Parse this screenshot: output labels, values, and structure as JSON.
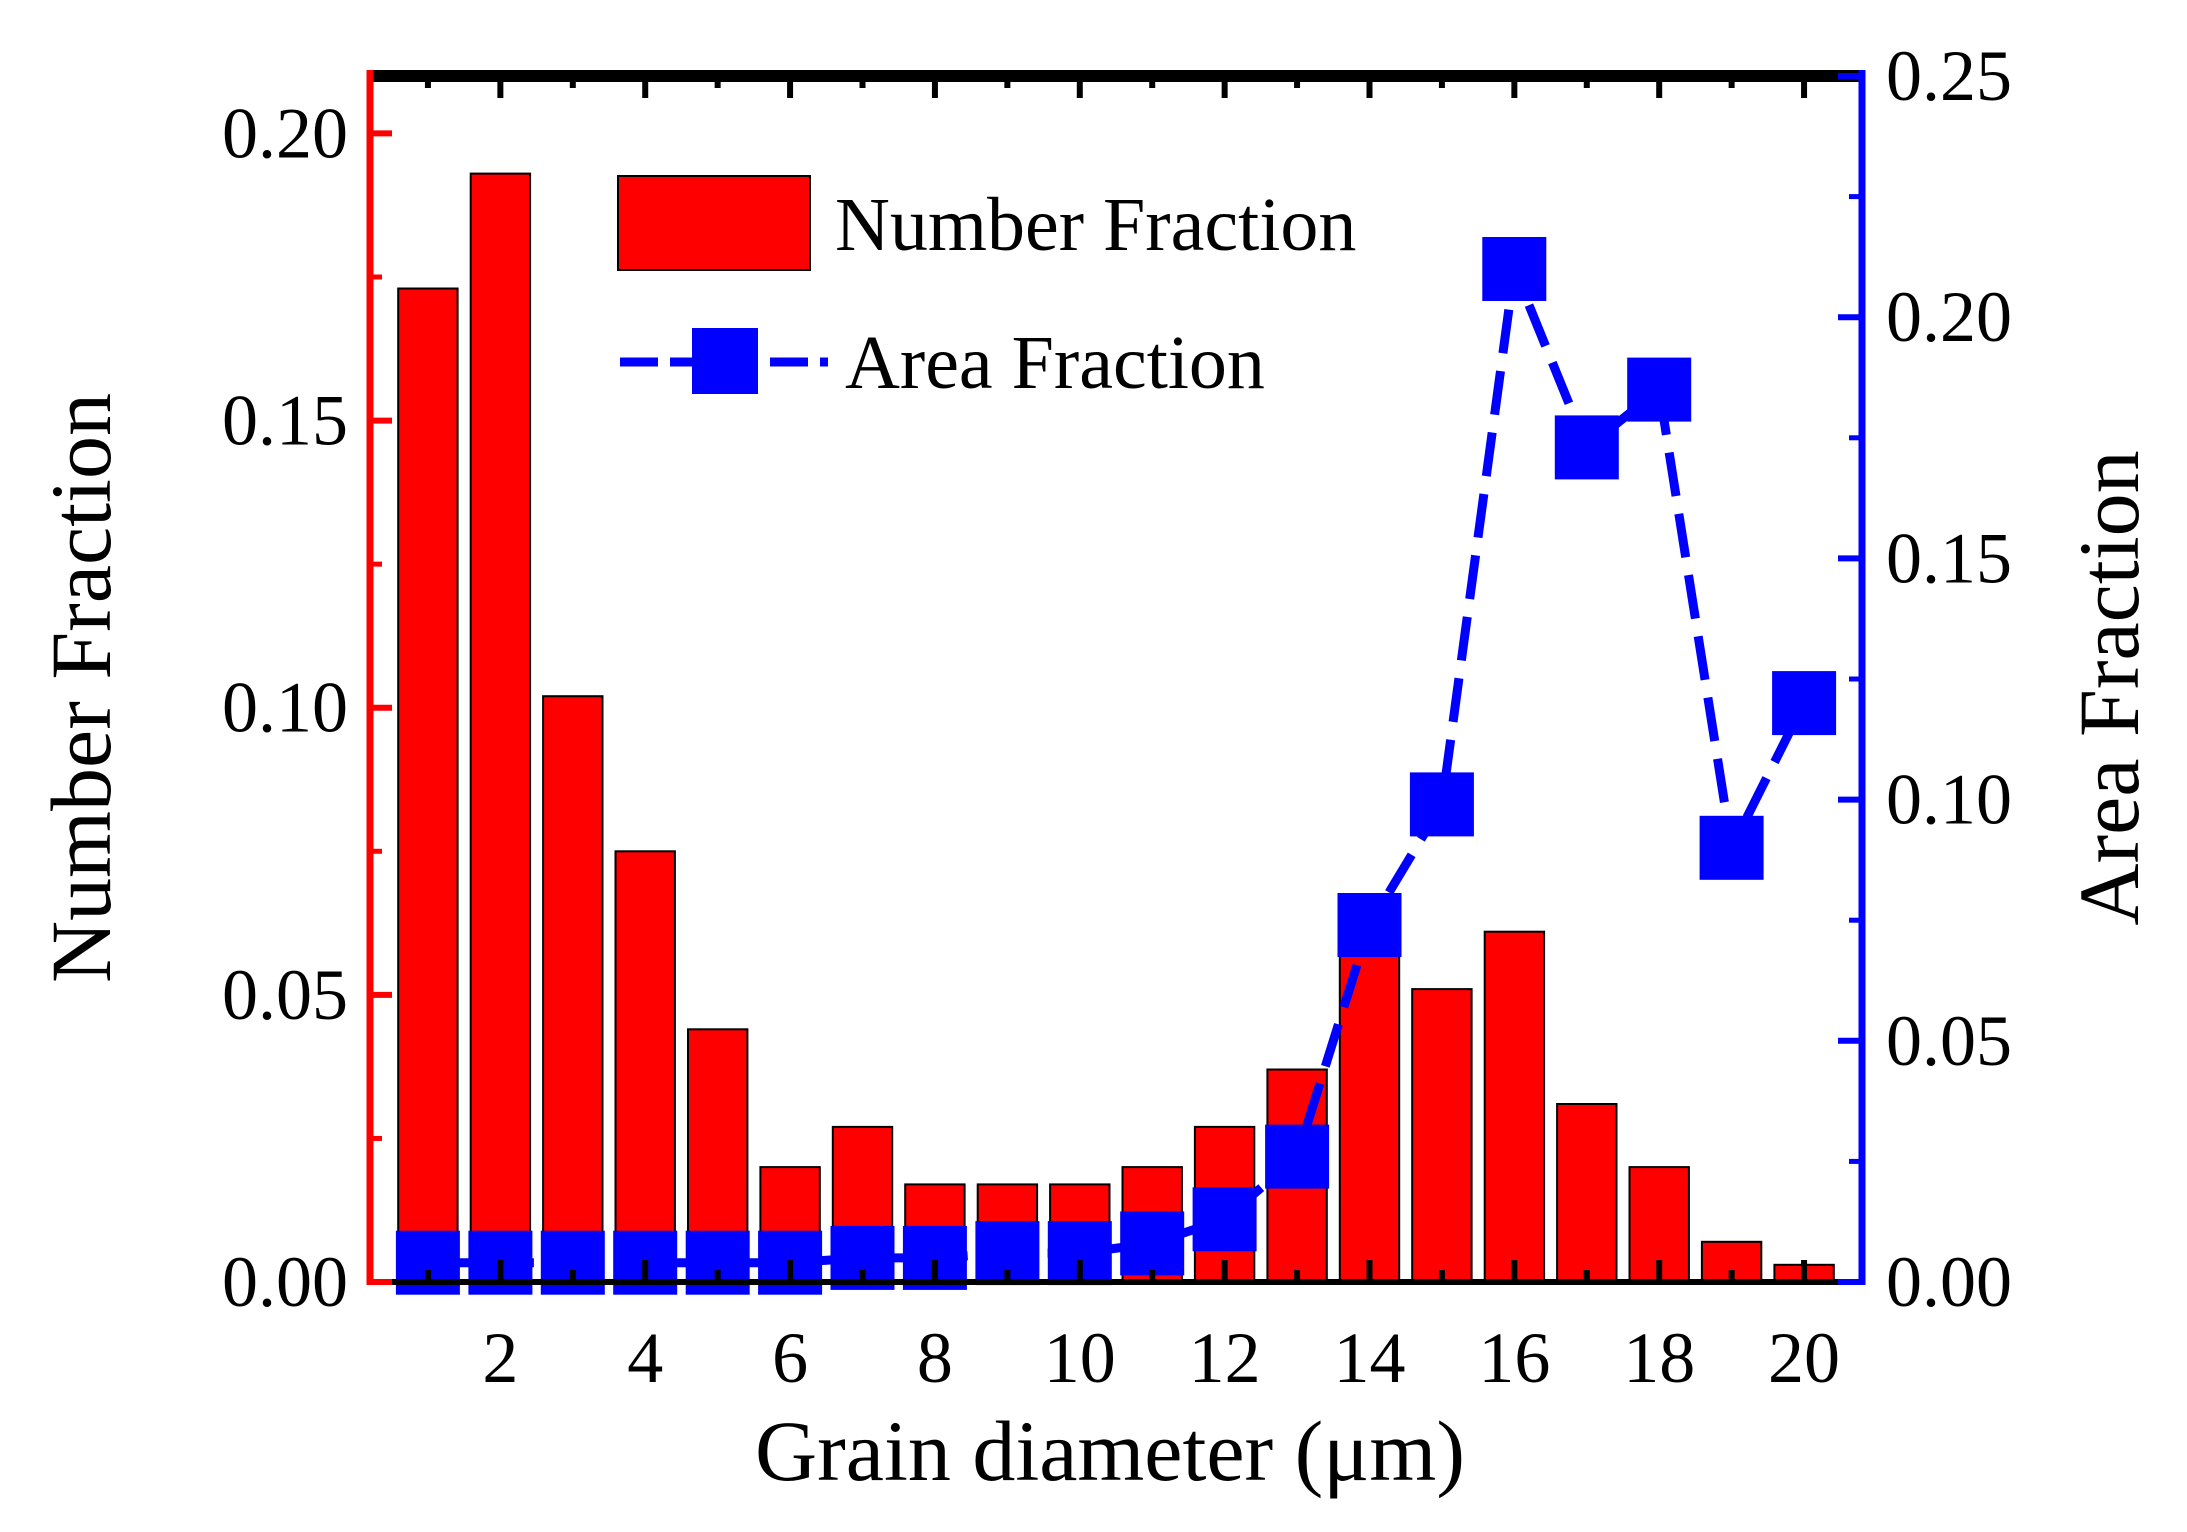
{
  "chart_data": {
    "type": "bar",
    "xlabel": "Grain diameter (μm)",
    "ylabel_left": "Number Fraction",
    "ylabel_right": "Area Fraction",
    "x": [
      1,
      2,
      3,
      4,
      5,
      6,
      7,
      8,
      9,
      10,
      11,
      12,
      13,
      14,
      15,
      16,
      17,
      18,
      19,
      20
    ],
    "xlim": [
      0.2,
      20.8
    ],
    "x_ticks": [
      2,
      4,
      6,
      8,
      10,
      12,
      14,
      16,
      18,
      20
    ],
    "x_tick_labels": [
      "2",
      "4",
      "6",
      "8",
      "10",
      "12",
      "14",
      "16",
      "18",
      "20"
    ],
    "ylim_left": [
      0,
      0.21
    ],
    "y_left_ticks": [
      0,
      0.05,
      0.1,
      0.15,
      0.2
    ],
    "y_left_tick_labels": [
      "0.00",
      "0.05",
      "0.10",
      "0.15",
      "0.20"
    ],
    "ylim_right": [
      0,
      0.25
    ],
    "y_right_ticks": [
      0,
      0.05,
      0.1,
      0.15,
      0.2,
      0.25
    ],
    "y_right_tick_labels": [
      "0.00",
      "0.05",
      "0.10",
      "0.15",
      "0.20",
      "0.25"
    ],
    "series": [
      {
        "name": "Number Fraction",
        "type": "bar",
        "axis": "left",
        "color": "#ff0000",
        "values": [
          0.173,
          0.193,
          0.102,
          0.075,
          0.044,
          0.02,
          0.027,
          0.017,
          0.017,
          0.017,
          0.02,
          0.027,
          0.037,
          0.058,
          0.051,
          0.061,
          0.031,
          0.02,
          0.007,
          0.003
        ]
      },
      {
        "name": "Area Fraction",
        "type": "line",
        "axis": "right",
        "color": "#0000ff",
        "line_style": "dashed",
        "marker": "square",
        "values": [
          0.004,
          0.004,
          0.004,
          0.004,
          0.004,
          0.004,
          0.005,
          0.005,
          0.006,
          0.006,
          0.008,
          0.013,
          0.026,
          0.074,
          0.099,
          0.21,
          0.173,
          0.185,
          0.09,
          0.12
        ]
      }
    ],
    "legend_position": "top-center"
  }
}
